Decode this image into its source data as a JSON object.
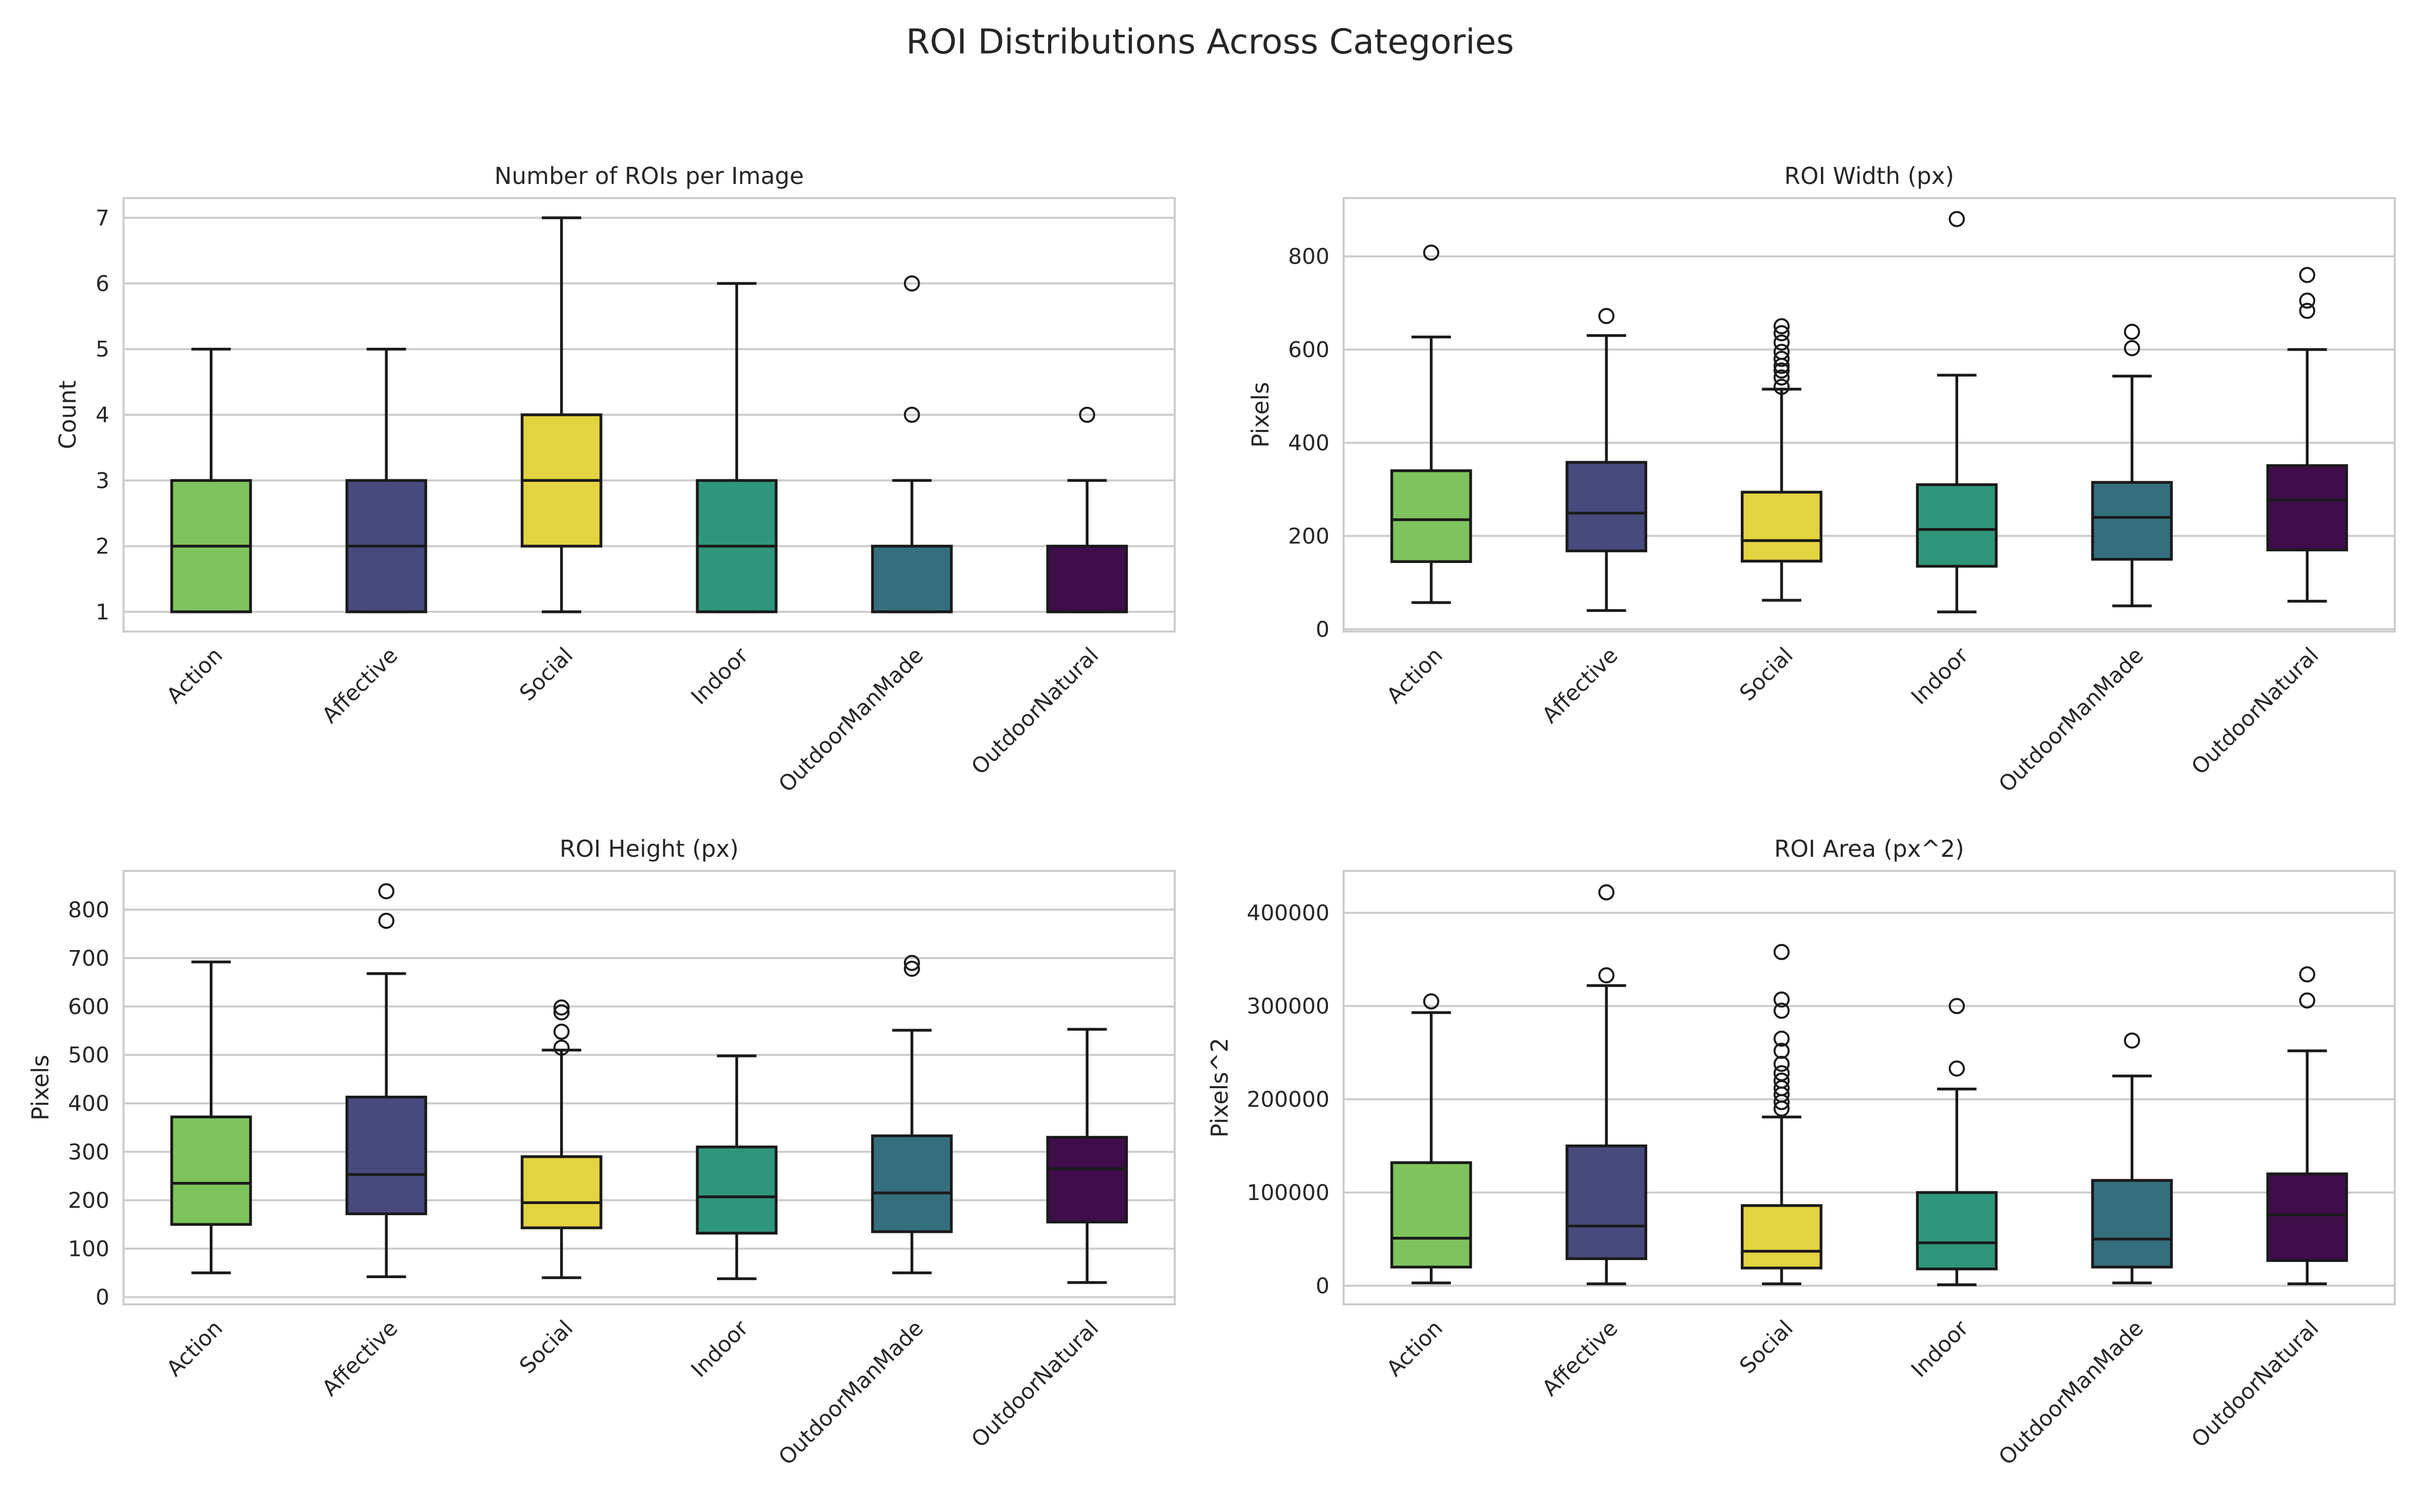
{
  "figure": {
    "title": "ROI Distributions Across Categories"
  },
  "colors": {
    "Action": "#7ec45d",
    "Affective": "#484a7e",
    "Social": "#e2d340",
    "Indoor": "#2f967b",
    "OutdoorManMade": "#356f7d",
    "OutdoorNatural": "#3f0d4a"
  },
  "chart_data": [
    {
      "type": "box",
      "title": "Number of ROIs per Image",
      "xlabel": "",
      "ylabel": "Count",
      "categories": [
        "Action",
        "Affective",
        "Social",
        "Indoor",
        "OutdoorManMade",
        "OutdoorNatural"
      ],
      "ylim": [
        0.7,
        7.3
      ],
      "yticks": [
        1,
        2,
        3,
        4,
        5,
        6,
        7
      ],
      "ytick_labels": [
        "1",
        "2",
        "3",
        "4",
        "5",
        "6",
        "7"
      ],
      "grid": true,
      "boxes": [
        {
          "whislo": 1,
          "q1": 1,
          "med": 2,
          "q3": 3,
          "whishi": 5,
          "fliers": []
        },
        {
          "whislo": 1,
          "q1": 1,
          "med": 2,
          "q3": 3,
          "whishi": 5,
          "fliers": []
        },
        {
          "whislo": 1,
          "q1": 2,
          "med": 3,
          "q3": 4,
          "whishi": 7,
          "fliers": []
        },
        {
          "whislo": 1,
          "q1": 1,
          "med": 2,
          "q3": 3,
          "whishi": 6,
          "fliers": []
        },
        {
          "whislo": 1,
          "q1": 1,
          "med": 1,
          "q3": 2,
          "whishi": 3,
          "fliers": [
            4,
            6
          ]
        },
        {
          "whislo": 1,
          "q1": 1,
          "med": 1,
          "q3": 2,
          "whishi": 3,
          "fliers": [
            4
          ]
        }
      ]
    },
    {
      "type": "box",
      "title": "ROI Width (px)",
      "xlabel": "",
      "ylabel": "Pixels",
      "categories": [
        "Action",
        "Affective",
        "Social",
        "Indoor",
        "OutdoorManMade",
        "OutdoorNatural"
      ],
      "ylim": [
        -5,
        925
      ],
      "yticks": [
        0,
        200,
        400,
        600,
        800
      ],
      "ytick_labels": [
        "0",
        "200",
        "400",
        "600",
        "800"
      ],
      "grid": true,
      "boxes": [
        {
          "whislo": 57,
          "q1": 145,
          "med": 235,
          "q3": 340,
          "whishi": 627,
          "fliers": [
            808
          ]
        },
        {
          "whislo": 40,
          "q1": 168,
          "med": 249,
          "q3": 358,
          "whishi": 630,
          "fliers": [
            672
          ]
        },
        {
          "whislo": 62,
          "q1": 146,
          "med": 190,
          "q3": 294,
          "whishi": 515,
          "fliers": [
            520,
            540,
            555,
            565,
            580,
            595,
            615,
            635,
            650
          ]
        },
        {
          "whislo": 37,
          "q1": 135,
          "med": 214,
          "q3": 310,
          "whishi": 545,
          "fliers": [
            880
          ]
        },
        {
          "whislo": 50,
          "q1": 150,
          "med": 240,
          "q3": 315,
          "whishi": 543,
          "fliers": [
            603,
            638
          ]
        },
        {
          "whislo": 60,
          "q1": 170,
          "med": 277,
          "q3": 351,
          "whishi": 600,
          "fliers": [
            683,
            705,
            760
          ]
        }
      ]
    },
    {
      "type": "box",
      "title": "ROI Height (px)",
      "xlabel": "",
      "ylabel": "Pixels",
      "categories": [
        "Action",
        "Affective",
        "Social",
        "Indoor",
        "OutdoorManMade",
        "OutdoorNatural"
      ],
      "ylim": [
        -15,
        880
      ],
      "yticks": [
        0,
        100,
        200,
        300,
        400,
        500,
        600,
        700,
        800
      ],
      "ytick_labels": [
        "0",
        "100",
        "200",
        "300",
        "400",
        "500",
        "600",
        "700",
        "800"
      ],
      "grid": true,
      "boxes": [
        {
          "whislo": 50,
          "q1": 150,
          "med": 235,
          "q3": 372,
          "whishi": 692,
          "fliers": []
        },
        {
          "whislo": 42,
          "q1": 172,
          "med": 253,
          "q3": 413,
          "whishi": 668,
          "fliers": [
            777,
            838
          ]
        },
        {
          "whislo": 40,
          "q1": 143,
          "med": 195,
          "q3": 290,
          "whishi": 510,
          "fliers": [
            515,
            548,
            588,
            598
          ]
        },
        {
          "whislo": 38,
          "q1": 132,
          "med": 207,
          "q3": 310,
          "whishi": 498,
          "fliers": []
        },
        {
          "whislo": 50,
          "q1": 135,
          "med": 215,
          "q3": 333,
          "whishi": 551,
          "fliers": [
            678,
            690
          ]
        },
        {
          "whislo": 30,
          "q1": 155,
          "med": 265,
          "q3": 330,
          "whishi": 553,
          "fliers": []
        }
      ]
    },
    {
      "type": "box",
      "title": "ROI Area (px^2)",
      "xlabel": "",
      "ylabel": "Pixels^2",
      "categories": [
        "Action",
        "Affective",
        "Social",
        "Indoor",
        "OutdoorManMade",
        "OutdoorNatural"
      ],
      "ylim": [
        -20000,
        445000
      ],
      "yticks": [
        0,
        100000,
        200000,
        300000,
        400000
      ],
      "ytick_labels": [
        "0",
        "100000",
        "200000",
        "300000",
        "400000"
      ],
      "grid": true,
      "boxes": [
        {
          "whislo": 3000,
          "q1": 20000,
          "med": 51000,
          "q3": 132000,
          "whishi": 293000,
          "fliers": [
            305000
          ]
        },
        {
          "whislo": 2000,
          "q1": 29000,
          "med": 64000,
          "q3": 150000,
          "whishi": 322000,
          "fliers": [
            333000,
            422000
          ]
        },
        {
          "whislo": 2000,
          "q1": 19000,
          "med": 37000,
          "q3": 86000,
          "whishi": 181000,
          "fliers": [
            190000,
            197000,
            205000,
            212000,
            220000,
            228000,
            238000,
            252000,
            265000,
            295000,
            307000,
            358000
          ]
        },
        {
          "whislo": 1000,
          "q1": 18000,
          "med": 46000,
          "q3": 100000,
          "whishi": 211000,
          "fliers": [
            233000,
            300000
          ]
        },
        {
          "whislo": 3000,
          "q1": 20000,
          "med": 50000,
          "q3": 113000,
          "whishi": 225000,
          "fliers": [
            263000
          ]
        },
        {
          "whislo": 2000,
          "q1": 27000,
          "med": 76000,
          "q3": 120000,
          "whishi": 252000,
          "fliers": [
            306000,
            334000
          ]
        }
      ]
    }
  ]
}
